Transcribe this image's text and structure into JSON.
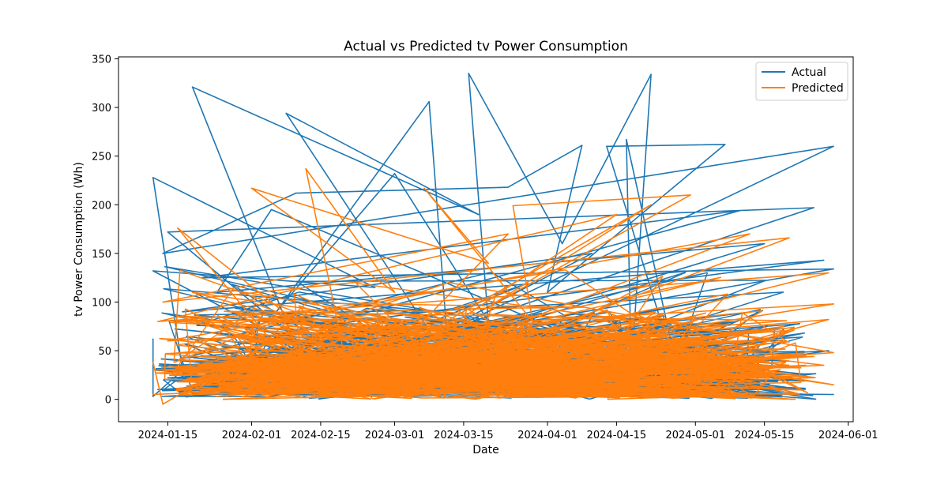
{
  "chart_data": {
    "type": "line",
    "title": "Actual vs Predicted tv Power Consumption",
    "xlabel": "Date",
    "ylabel": "tv Power Consumption (Wh)",
    "x_axis_type": "date",
    "xlim": [
      "2024-01-05",
      "2024-06-02"
    ],
    "ylim": [
      -23,
      352
    ],
    "x_ticks": [
      "2024-01-15",
      "2024-02-01",
      "2024-02-15",
      "2024-03-01",
      "2024-03-15",
      "2024-04-01",
      "2024-04-15",
      "2024-05-01",
      "2024-05-15",
      "2024-06-01"
    ],
    "y_ticks": [
      0,
      50,
      100,
      150,
      200,
      250,
      300,
      350
    ],
    "grid": false,
    "legend_position": "top-right",
    "colors": {
      "actual": "#1f77b4",
      "predicted": "#ff7f0e"
    },
    "series": [
      {
        "name": "Actual",
        "color": "#1f77b4",
        "points": [
          [
            "2024-01-12",
            62
          ],
          [
            "2024-01-12",
            3
          ],
          [
            "2024-01-18",
            30
          ],
          [
            "2024-01-12",
            228
          ],
          [
            "2024-02-26",
            115
          ],
          [
            "2024-01-12",
            132
          ],
          [
            "2024-02-10",
            55
          ],
          [
            "2024-01-20",
            321
          ],
          [
            "2024-03-18",
            190
          ],
          [
            "2024-02-08",
            294
          ],
          [
            "2024-03-12",
            40
          ],
          [
            "2024-03-08",
            306
          ],
          [
            "2024-02-06",
            90
          ],
          [
            "2024-03-01",
            232
          ],
          [
            "2024-03-20",
            80
          ],
          [
            "2024-03-16",
            335
          ],
          [
            "2024-04-04",
            160
          ],
          [
            "2024-04-22",
            334
          ],
          [
            "2024-04-18",
            30
          ],
          [
            "2024-04-17",
            267
          ],
          [
            "2024-04-28",
            15
          ],
          [
            "2024-04-13",
            260
          ],
          [
            "2024-05-07",
            262
          ],
          [
            "2024-04-01",
            110
          ],
          [
            "2024-04-08",
            261
          ],
          [
            "2024-03-24",
            218
          ],
          [
            "2024-02-10",
            212
          ],
          [
            "2024-01-14",
            150
          ],
          [
            "2024-05-29",
            260
          ],
          [
            "2024-02-20",
            20
          ],
          [
            "2024-01-15",
            172
          ],
          [
            "2024-05-25",
            197
          ],
          [
            "2024-03-05",
            60
          ],
          [
            "2024-05-29",
            134
          ],
          [
            "2024-01-22",
            125
          ],
          [
            "2024-05-10",
            194
          ],
          [
            "2024-02-14",
            75
          ],
          [
            "2024-05-27",
            143
          ],
          [
            "2024-01-18",
            90
          ],
          [
            "2024-04-10",
            150
          ],
          [
            "2024-03-01",
            45
          ],
          [
            "2024-05-15",
            160
          ],
          [
            "2024-01-25",
            110
          ],
          [
            "2024-02-05",
            195
          ],
          [
            "2024-04-25",
            25
          ],
          [
            "2024-05-28",
            50
          ],
          [
            "2024-01-13",
            10
          ],
          [
            "2024-05-29",
            5
          ]
        ]
      },
      {
        "name": "Predicted",
        "color": "#ff7f0e",
        "points": [
          [
            "2024-01-12",
            38
          ],
          [
            "2024-01-14",
            -5
          ],
          [
            "2024-02-05",
            60
          ],
          [
            "2024-01-17",
            176
          ],
          [
            "2024-02-20",
            40
          ],
          [
            "2024-02-12",
            237
          ],
          [
            "2024-03-01",
            110
          ],
          [
            "2024-02-01",
            217
          ],
          [
            "2024-03-20",
            140
          ],
          [
            "2024-03-07",
            217
          ],
          [
            "2024-03-29",
            80
          ],
          [
            "2024-03-25",
            199
          ],
          [
            "2024-04-30",
            210
          ],
          [
            "2024-03-20",
            95
          ],
          [
            "2024-04-22",
            200
          ],
          [
            "2024-03-01",
            50
          ],
          [
            "2024-03-24",
            170
          ],
          [
            "2024-01-14",
            100
          ],
          [
            "2024-05-20",
            166
          ],
          [
            "2024-03-10",
            30
          ],
          [
            "2024-05-28",
            130
          ],
          [
            "2024-01-13",
            80
          ],
          [
            "2024-04-15",
            190
          ],
          [
            "2024-02-25",
            20
          ],
          [
            "2024-05-12",
            170
          ],
          [
            "2024-01-15",
            60
          ],
          [
            "2024-05-29",
            98
          ],
          [
            "2024-02-03",
            5
          ],
          [
            "2024-05-29",
            48
          ],
          [
            "2024-03-12",
            120
          ],
          [
            "2024-01-16",
            25
          ],
          [
            "2024-05-28",
            82
          ],
          [
            "2024-04-05",
            10
          ],
          [
            "2024-01-20",
            110
          ],
          [
            "2024-05-29",
            15
          ],
          [
            "2024-02-28",
            90
          ],
          [
            "2024-05-27",
            35
          ],
          [
            "2024-01-12",
            5
          ]
        ]
      }
    ]
  }
}
